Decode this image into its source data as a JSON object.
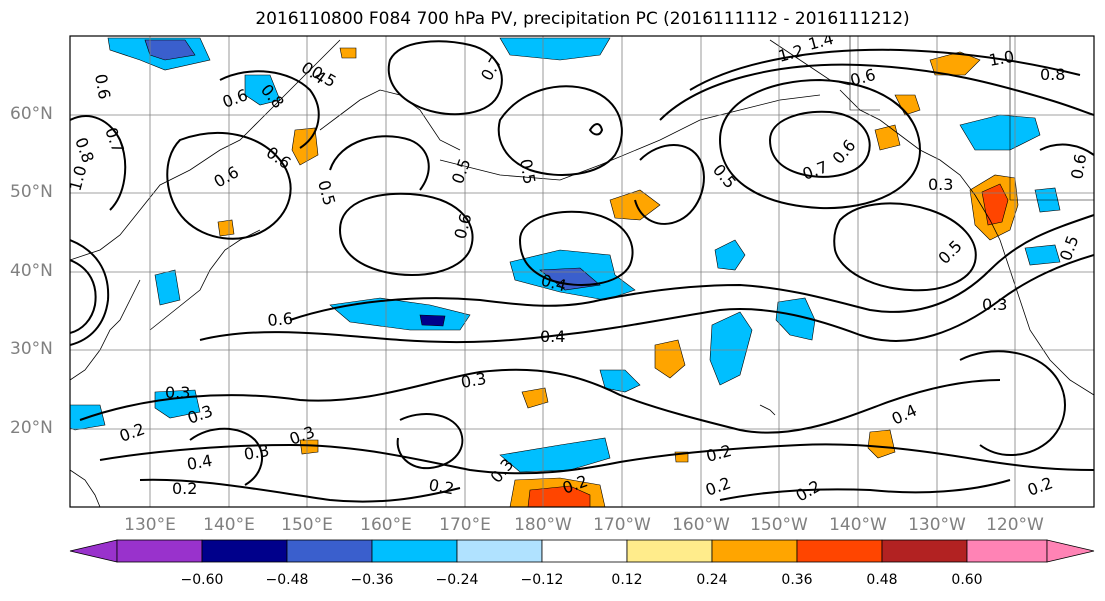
{
  "title": "2016110800 F084 700 hPa PV, precipitation PC (2016111112 - 2016111212)",
  "map": {
    "lat_labels": [
      "60°N",
      "50°N",
      "40°N",
      "30°N",
      "20°N"
    ],
    "lon_labels": [
      "130°E",
      "140°E",
      "150°E",
      "160°E",
      "170°E",
      "180°W",
      "170°W",
      "160°W",
      "150°W",
      "140°W",
      "130°W",
      "120°W"
    ],
    "grid": true
  },
  "colorbar": {
    "ticks": [
      "−0.60",
      "−0.48",
      "−0.36",
      "−0.24",
      "−0.12",
      "0.12",
      "0.24",
      "0.36",
      "0.48",
      "0.60"
    ],
    "colors": [
      "#9932cc",
      "#00008b",
      "#3a5fcd",
      "#00bfff",
      "#b0e2ff",
      "#ffffff",
      "#ffec8b",
      "#ffa500",
      "#ff4500",
      "#b22222",
      "#ff83b5"
    ]
  },
  "contour_labels": [
    "1.2",
    "1.4",
    "1.0",
    "0.8",
    "0.6",
    "0.5",
    "0.4",
    "0.6",
    "0.7",
    "0.5",
    "0.7",
    "0.6",
    "0.5",
    "0.8",
    "0.6",
    "0.7",
    "0.8",
    "1.0",
    "0.6",
    "0.5",
    "0.6",
    "0.5",
    "0.6",
    "0.4",
    "0.6",
    "0.4",
    "0.3",
    "0.3",
    "0.2",
    "0.3",
    "0.4",
    "0.3",
    "0.3",
    "0.3",
    "0.2",
    "0.2",
    "0.2",
    "0.2",
    "0.2",
    "0.2",
    "0.4",
    "0.5",
    "0.3",
    "0.5",
    "0.6",
    "0.3",
    "0.2"
  ]
}
